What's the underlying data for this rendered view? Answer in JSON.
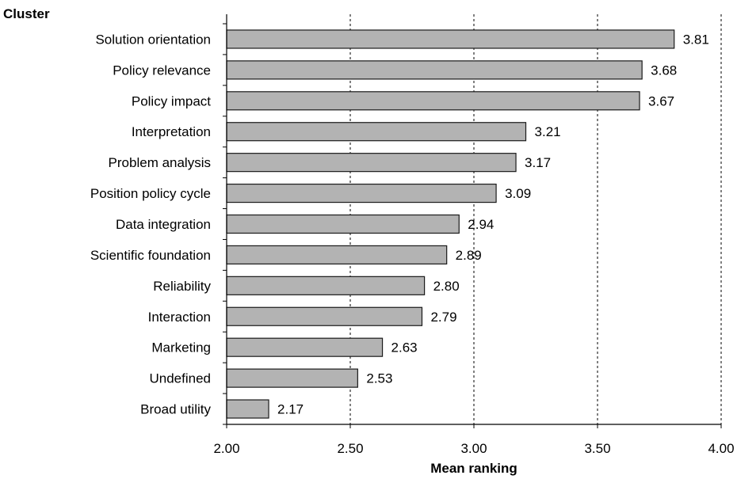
{
  "chart_data": {
    "type": "bar",
    "orientation": "horizontal",
    "title": "",
    "ylabel": "Cluster",
    "xlabel": "Mean ranking",
    "categories": [
      "Solution  orientation",
      "Policy relevance",
      "Policy impact",
      "Interpretation",
      "Problem analysis",
      "Position  policy cycle",
      "Data integration",
      "Scientific foundation",
      "Reliability",
      "Interaction",
      "Marketing",
      "Undefined",
      "Broad utility"
    ],
    "values": [
      3.81,
      3.68,
      3.67,
      3.21,
      3.17,
      3.09,
      2.94,
      2.89,
      2.8,
      2.79,
      2.63,
      2.53,
      2.17
    ],
    "value_labels": [
      "3.81",
      "3.68",
      "3.67",
      "3.21",
      "3.17",
      "3.09",
      "2.94",
      "2.89",
      "2.80",
      "2.79",
      "2.63",
      "2.53",
      "2.17"
    ],
    "xlim": [
      2.0,
      4.0
    ],
    "xticks": [
      2.0,
      2.5,
      3.0,
      3.5,
      4.0
    ],
    "xtick_labels": [
      "2.00",
      "2.50",
      "3.00",
      "3.50",
      "4.00"
    ],
    "grid": "vertical dashed",
    "legend": "none",
    "bar_color": "#b3b3b3",
    "bar_edge_color": "#1a1a1a"
  }
}
